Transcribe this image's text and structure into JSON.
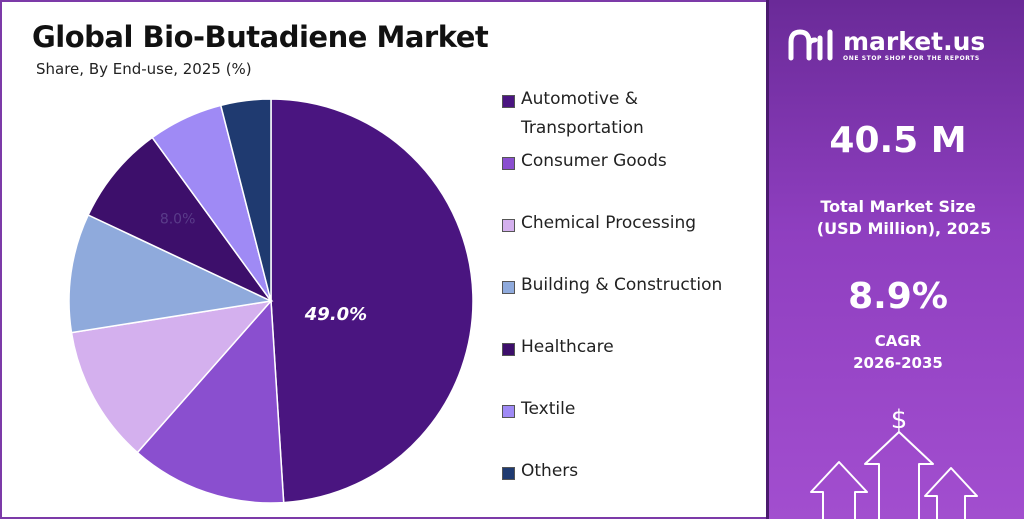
{
  "chart_data": {
    "type": "pie",
    "title": "Global Bio-Butadiene Market",
    "subtitle": "Share, By End-use, 2025 (%)",
    "categories": [
      "Automotive & Transportation",
      "Consumer Goods",
      "Chemical Processing",
      "Building & Construction",
      "Healthcare",
      "Textile",
      "Others"
    ],
    "values": [
      49.0,
      12.5,
      11.0,
      9.5,
      8.0,
      6.0,
      4.0
    ],
    "colors": [
      "#4a1580",
      "#8a4fcf",
      "#d4b0ee",
      "#8faadc",
      "#3d0f6b",
      "#9f8af5",
      "#1f3a70"
    ],
    "data_labels": {
      "slice_0": "49.0%",
      "slice_4": "8.0%"
    },
    "legend_position": "right"
  },
  "brand": {
    "name": "market.us",
    "tagline": "ONE STOP SHOP FOR THE REPORTS"
  },
  "stats": {
    "market_size_value": "40.5 M",
    "market_size_label_line1": "Total Market Size",
    "market_size_label_line2": "(USD Million), 2025",
    "cagr_value": "8.9%",
    "cagr_label_line1": "CAGR",
    "cagr_label_line2": "2026-2035"
  },
  "dollar_symbol": "$"
}
